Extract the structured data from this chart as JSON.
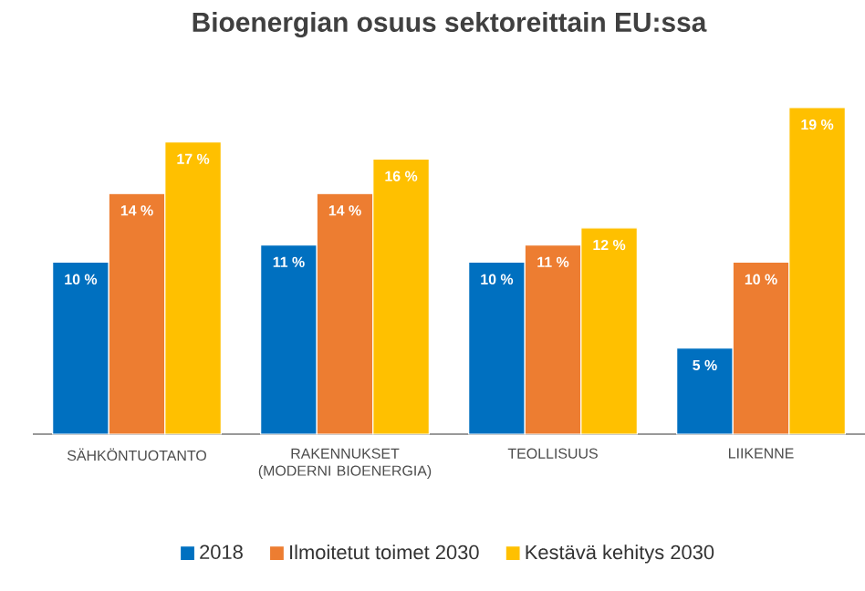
{
  "chart_data": {
    "type": "bar",
    "title": "Bioenergian osuus sektoreittain EU:ssa",
    "categories": [
      "SÄHKÖNTUOTANTO",
      "RAKENNUKSET (MODERNI BIOENERGIA)",
      "TEOLLISUUS",
      "LIIKENNE"
    ],
    "series": [
      {
        "name": "2018",
        "color": "#0070c0",
        "values": [
          10,
          11,
          10,
          5
        ],
        "value_labels": [
          "10 %",
          "11 %",
          "10 %",
          "5 %"
        ]
      },
      {
        "name": "Ilmoitetut toimet 2030",
        "color": "#ed7d31",
        "values": [
          14,
          14,
          11,
          10
        ],
        "value_labels": [
          "14 %",
          "14 %",
          "11 %",
          "10 %"
        ]
      },
      {
        "name": "Kestävä kehitys 2030",
        "color": "#ffc000",
        "values": [
          17,
          16,
          12,
          19
        ],
        "value_labels": [
          "17 %",
          "16 %",
          "12 %",
          "19 %"
        ]
      }
    ],
    "tick_labels": "x",
    "legend": "bottom"
  }
}
